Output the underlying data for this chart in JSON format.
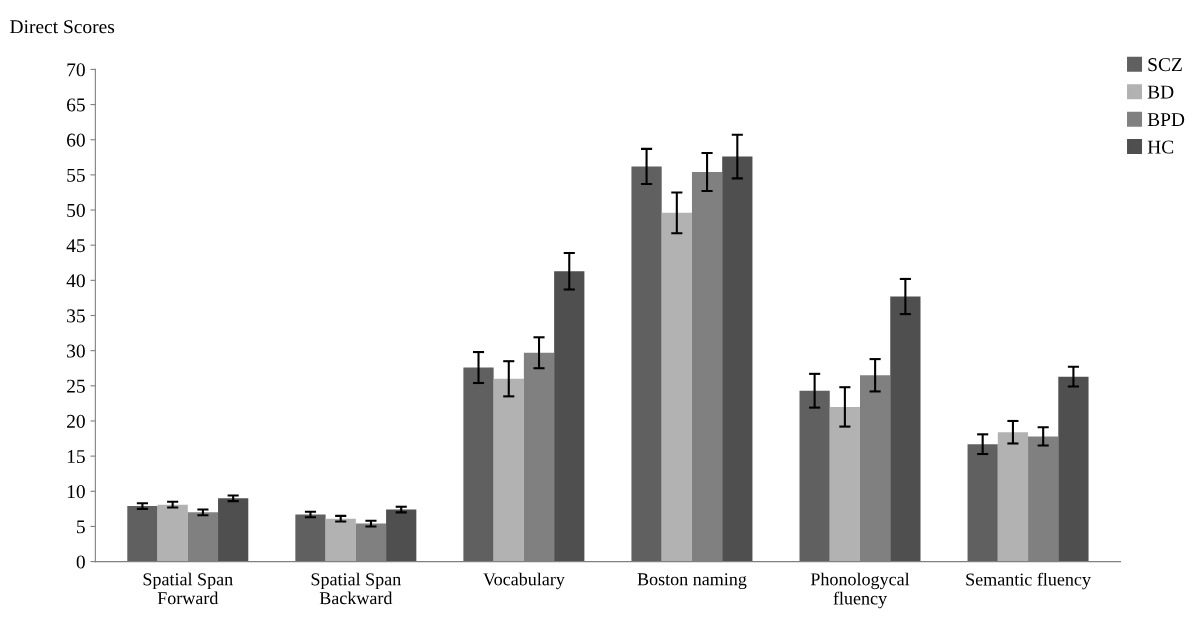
{
  "chart_data": {
    "type": "bar",
    "ylabel": "Direct Scores",
    "categories": [
      "Spatial Span\nForward",
      "Spatial Span\nBackward",
      "Vocabulary",
      "Boston naming",
      "Phonologycal\nfluency",
      "Semantic fluency"
    ],
    "series": [
      {
        "name": "SCZ",
        "color": "#606060",
        "values": [
          7.9,
          6.7,
          27.6,
          56.2,
          24.3,
          16.7
        ],
        "errors": [
          0.4,
          0.4,
          2.2,
          2.5,
          2.4,
          1.4
        ]
      },
      {
        "name": "BD",
        "color": "#b2b2b2",
        "values": [
          8.1,
          6.1,
          26.0,
          49.6,
          22.0,
          18.4
        ],
        "errors": [
          0.4,
          0.4,
          2.5,
          2.9,
          2.8,
          1.6
        ]
      },
      {
        "name": "BPD",
        "color": "#808080",
        "values": [
          7.0,
          5.4,
          29.7,
          55.4,
          26.5,
          17.8
        ],
        "errors": [
          0.4,
          0.4,
          2.2,
          2.7,
          2.3,
          1.3
        ]
      },
      {
        "name": "HC",
        "color": "#4f4f4f",
        "values": [
          9.0,
          7.4,
          41.3,
          57.6,
          37.7,
          26.3
        ],
        "errors": [
          0.4,
          0.4,
          2.6,
          3.1,
          2.5,
          1.4
        ]
      }
    ],
    "ylim": [
      0,
      70
    ],
    "yticks": [
      0,
      5,
      10,
      15,
      20,
      25,
      30,
      35,
      40,
      45,
      50,
      55,
      60,
      65,
      70
    ],
    "grid": false,
    "legend": "top right"
  }
}
